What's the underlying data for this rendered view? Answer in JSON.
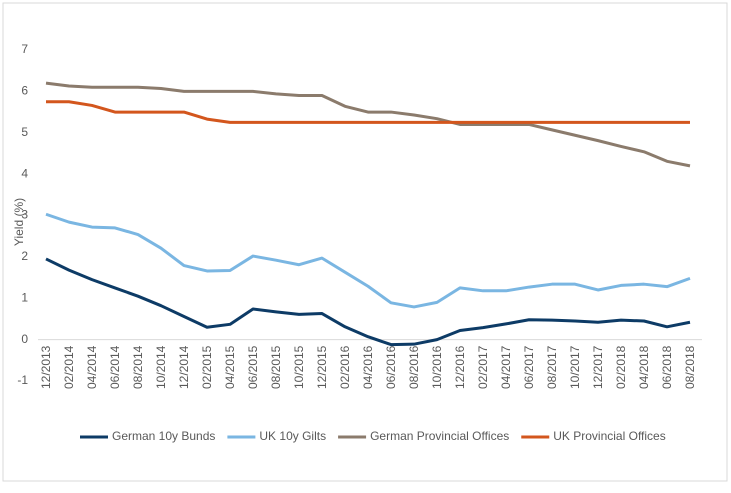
{
  "chart_data": {
    "type": "line",
    "y_label": "Yield (%)",
    "categories": [
      "12/2013",
      "02/2014",
      "04/2014",
      "06/2014",
      "08/2014",
      "10/2014",
      "12/2014",
      "02/2015",
      "04/2015",
      "06/2015",
      "08/2015",
      "10/2015",
      "12/2015",
      "02/2016",
      "04/2016",
      "06/2016",
      "08/2016",
      "10/2016",
      "12/2016",
      "02/2017",
      "04/2017",
      "06/2017",
      "08/2017",
      "10/2017",
      "12/2017",
      "02/2018",
      "04/2018",
      "06/2018",
      "08/2018"
    ],
    "series": [
      {
        "name": "German 10y Bunds",
        "color": "#0d3b66",
        "values": [
          1.95,
          1.68,
          1.45,
          1.25,
          1.05,
          0.82,
          0.56,
          0.3,
          0.37,
          0.74,
          0.67,
          0.61,
          0.63,
          0.31,
          0.07,
          -0.12,
          -0.11,
          0.0,
          0.22,
          0.29,
          0.38,
          0.48,
          0.47,
          0.45,
          0.42,
          0.47,
          0.45,
          0.31,
          0.42
        ]
      },
      {
        "name": "UK 10y Gilts",
        "color": "#7ab6e2",
        "values": [
          3.03,
          2.84,
          2.72,
          2.7,
          2.54,
          2.21,
          1.79,
          1.66,
          1.67,
          2.02,
          1.92,
          1.81,
          1.97,
          1.63,
          1.29,
          0.89,
          0.79,
          0.9,
          1.25,
          1.18,
          1.18,
          1.27,
          1.34,
          1.34,
          1.2,
          1.31,
          1.34,
          1.28,
          1.48
        ]
      },
      {
        "name": "German Provincial Offices",
        "color": "#8b7b6c",
        "values": [
          6.2,
          6.13,
          6.1,
          6.1,
          6.1,
          6.07,
          6.0,
          6.0,
          6.0,
          6.0,
          5.94,
          5.9,
          5.9,
          5.64,
          5.5,
          5.5,
          5.43,
          5.34,
          5.2,
          5.2,
          5.2,
          5.2,
          5.07,
          4.94,
          4.81,
          4.67,
          4.54,
          4.31,
          4.2
        ]
      },
      {
        "name": "UK Provincial Offices",
        "color": "#d3561d",
        "values": [
          5.75,
          5.75,
          5.66,
          5.5,
          5.5,
          5.5,
          5.5,
          5.33,
          5.25,
          5.25,
          5.25,
          5.25,
          5.25,
          5.25,
          5.25,
          5.25,
          5.25,
          5.25,
          5.25,
          5.25,
          5.25,
          5.25,
          5.25,
          5.25,
          5.25,
          5.25,
          5.25,
          5.25,
          5.25
        ]
      }
    ],
    "ylim": [
      -1,
      7
    ],
    "yticks": [
      -1,
      0,
      1,
      2,
      3,
      4,
      5,
      6,
      7
    ],
    "grid": false,
    "legend": "bottom"
  }
}
